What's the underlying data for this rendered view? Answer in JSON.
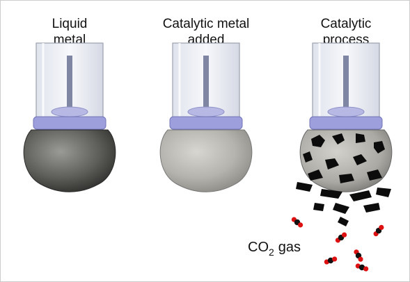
{
  "panels": [
    {
      "label_lines": [
        "Liquid",
        "metal"
      ]
    },
    {
      "label_lines": [
        "Catalytic metal",
        "added"
      ]
    },
    {
      "label_lines": [
        "Catalytic",
        "process"
      ]
    }
  ],
  "gas_label": {
    "formula": "CO",
    "subscript": "2",
    "suffix": "gas"
  }
}
